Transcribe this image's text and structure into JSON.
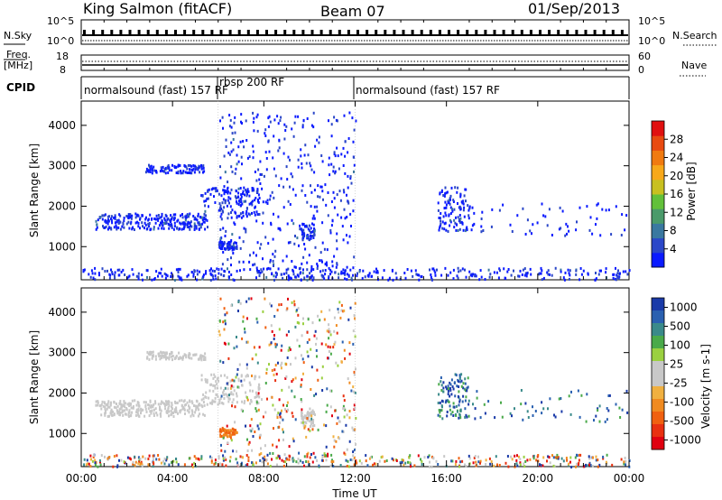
{
  "header": {
    "station": "King Salmon (fitACF)",
    "beam": "Beam 07",
    "date": "01/Sep/2013"
  },
  "summary": {
    "nsky_label": "N.Sky",
    "nsky_ticks": [
      "10^5",
      "10^0"
    ],
    "nsearch_label": "N.Search",
    "nsearch_ticks": [
      "10^5",
      "10^0"
    ],
    "freq_label": "Freq.",
    "freq_unit": "[MHz]",
    "freq_ticks": [
      "18",
      "8"
    ],
    "nave_label": "Nave",
    "nave_ticks": [
      "60",
      "0"
    ],
    "cpid_label": "CPID",
    "cpid_segments": [
      {
        "label": "normalsound (fast) 157 RF",
        "start_hour": 0,
        "end_hour": 6.0
      },
      {
        "label": "rbsp 200 RF",
        "start_hour": 6.0,
        "end_hour": 12.0
      },
      {
        "label": "normalsound (fast) 157 RF",
        "start_hour": 12.0,
        "end_hour": 24
      }
    ]
  },
  "chart_data": [
    {
      "type": "heatmap",
      "name": "power-panel",
      "ylabel": "Slant Range [km]",
      "ylim": [
        180,
        4600
      ],
      "yticks": [
        "1000",
        "2000",
        "3000",
        "4000"
      ],
      "xlim": [
        0,
        24
      ],
      "colorbar_label": "Power [dB]",
      "colorbar_ticks": [
        "4",
        "8",
        "12",
        "16",
        "20",
        "24",
        "28"
      ],
      "colormap": [
        "#0a1aff",
        "#2b47c8",
        "#3a78a0",
        "#4a9a6a",
        "#62c03a",
        "#c8c020",
        "#f7a81a",
        "#f07a10",
        "#e84a10",
        "#e01010"
      ]
    },
    {
      "type": "heatmap",
      "name": "velocity-panel",
      "ylabel": "Slant Range [km]",
      "ylim": [
        180,
        4600
      ],
      "yticks": [
        "1000",
        "2000",
        "3000",
        "4000"
      ],
      "xlim": [
        0,
        24
      ],
      "colorbar_label": "Velocity [m s-1]",
      "colorbar_ticks": [
        "1000",
        "500",
        "100",
        "25",
        "-25",
        "-100",
        "-500",
        "-1000"
      ],
      "colormap": [
        "#1a3aa8",
        "#2a60b0",
        "#3a8a8a",
        "#4aaa4a",
        "#9ad040",
        "#c8c8c8",
        "#c8c8c8",
        "#f0b040",
        "#f08a20",
        "#f06010",
        "#e83010",
        "#e00010"
      ]
    }
  ],
  "xaxis": {
    "label": "Time UT",
    "ticks": [
      "00:00",
      "04:00",
      "08:00",
      "12:00",
      "16:00",
      "20:00",
      "00:00"
    ]
  }
}
